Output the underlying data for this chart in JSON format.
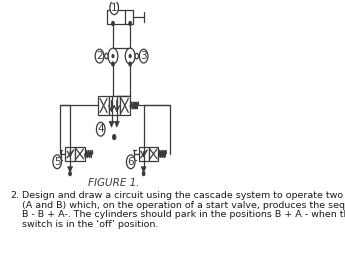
{
  "figure_label": "FIGURE 1.",
  "question_number": "2.",
  "question_text": "Design and draw a circuit using the cascade system to operate two cylinders (A and B) which, on the operation of a start valve, produces the sequence A + B - B + A-. The cylinders should park in the positions B + A - when the start switch is in the ‘off’ position.",
  "bg_color": "#ffffff",
  "line_color": "#3a3a3a",
  "lw": 0.9,
  "fig_label_fontsize": 7.5,
  "text_fontsize": 6.8,
  "label_circle_r": 7.0
}
